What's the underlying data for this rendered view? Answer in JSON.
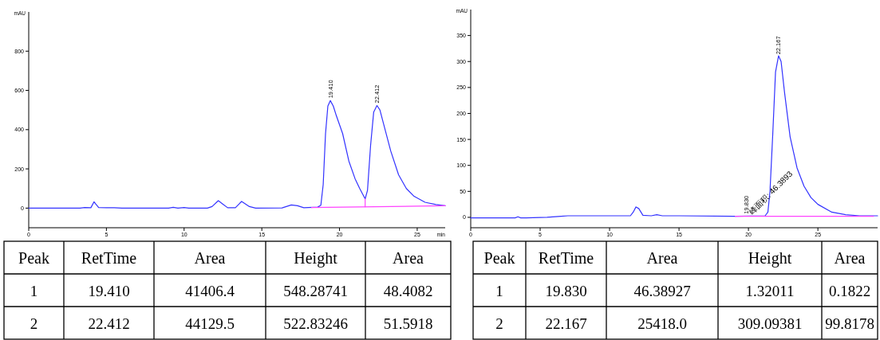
{
  "chart_data": [
    {
      "type": "line",
      "xlabel": "min",
      "ylabel": "mAU",
      "xlim": [
        0,
        26.8
      ],
      "ylim": [
        -100,
        1000
      ],
      "xticks": [
        0,
        5,
        10,
        15,
        20,
        25
      ],
      "yticks": [
        0,
        200,
        400,
        600,
        800
      ],
      "series": [
        {
          "color": "#3333ff",
          "x": [
            0,
            3.3,
            3.6,
            4.0,
            4.2,
            4.3,
            4.5,
            5.0,
            5.5,
            6.0,
            9.0,
            9.3,
            9.6,
            10.0,
            10.3,
            11.5,
            11.8,
            12.2,
            12.5,
            12.8,
            13.3,
            13.7,
            14.2,
            14.6,
            16.3,
            16.9,
            17.3,
            17.7,
            18.6,
            18.8,
            18.95,
            19.1,
            19.25,
            19.41,
            19.6,
            19.8,
            20.2,
            20.6,
            21.0,
            21.3,
            21.65,
            21.8,
            22.0,
            22.2,
            22.41,
            22.6,
            22.9,
            23.3,
            23.8,
            24.3,
            24.8,
            25.5,
            26.2,
            26.8
          ],
          "values": [
            0,
            0,
            3,
            2,
            32,
            22,
            3,
            2,
            2,
            0,
            0,
            4,
            0,
            3,
            0,
            0,
            8,
            38,
            20,
            2,
            2,
            34,
            8,
            0,
            1,
            16,
            12,
            2,
            5,
            15,
            120,
            380,
            520,
            548,
            520,
            470,
            380,
            240,
            150,
            100,
            47,
            90,
            320,
            490,
            523,
            500,
            410,
            290,
            170,
            100,
            60,
            30,
            18,
            12
          ]
        },
        {
          "color": "#ff44ff",
          "x": [
            18.2,
            26.8
          ],
          "values": [
            3,
            12
          ]
        },
        {
          "color": "#ff44ff",
          "x": [
            21.65,
            21.65
          ],
          "values": [
            7,
            47
          ]
        }
      ],
      "annotations": [
        {
          "text": "19.410",
          "x": 19.41,
          "y": 548
        },
        {
          "text": "22.412",
          "x": 22.412,
          "y": 523
        }
      ]
    },
    {
      "type": "line",
      "ylabel": "mAU",
      "xlim": [
        0,
        29.3
      ],
      "ylim": [
        -20,
        400
      ],
      "xticks": [
        0,
        5,
        10,
        15,
        20,
        25
      ],
      "yticks": [
        0,
        50,
        100,
        150,
        200,
        250,
        300,
        350
      ],
      "series": [
        {
          "color": "#3333ff",
          "x": [
            0,
            3.2,
            3.4,
            3.6,
            4.0,
            5.5,
            6.5,
            7.0,
            11.5,
            11.7,
            11.9,
            12.1,
            12.4,
            13.0,
            13.4,
            13.8,
            15.0,
            19.0,
            21.2,
            21.4,
            21.55,
            21.75,
            21.95,
            22.167,
            22.35,
            22.6,
            23.0,
            23.5,
            24.0,
            24.5,
            25.0,
            26.0,
            27.0,
            28.0,
            29.3
          ],
          "values": [
            -1,
            -1,
            1,
            -1,
            -1,
            0,
            2,
            3,
            3,
            10,
            20,
            17,
            4,
            3,
            5,
            3,
            3,
            2,
            3,
            10,
            50,
            160,
            280,
            311,
            300,
            240,
            155,
            95,
            60,
            38,
            25,
            10,
            5,
            3,
            3
          ]
        },
        {
          "color": "#ff44ff",
          "x": [
            19.05,
            29.0
          ],
          "values": [
            2,
            2
          ]
        }
      ],
      "annotations": [
        {
          "text": "22.167",
          "x": 22.167,
          "y": 309
        },
        {
          "text": "19.830",
          "x": 19.83,
          "y": 2
        },
        {
          "text": "峰面积: 46.3893",
          "x": 19.83,
          "y": 2
        }
      ]
    },
    {
      "type": "other",
      "categories": [
        "Peak",
        "RetTime",
        "Area",
        "Height",
        "Area"
      ],
      "series": [
        {
          "values": [
            1,
            19.41,
            41406.4,
            548.28741,
            48.4082
          ],
          "value_labels": [
            "1",
            "19.410",
            "41406.4",
            "548.28741",
            "48.4082"
          ]
        },
        {
          "values": [
            2,
            22.412,
            44129.5,
            522.83246,
            51.5918
          ],
          "value_labels": [
            "2",
            "22.412",
            "44129.5",
            "522.83246",
            "51.5918"
          ]
        }
      ]
    },
    {
      "type": "other",
      "categories": [
        "Peak",
        "RetTime",
        "Area",
        "Height",
        "Area"
      ],
      "series": [
        {
          "values": [
            1,
            19.83,
            46.38927,
            1.32011,
            0.1822
          ],
          "value_labels": [
            "1",
            "19.830",
            "46.38927",
            "1.32011",
            "0.1822"
          ]
        },
        {
          "values": [
            2,
            22.167,
            25418.0,
            309.09381,
            99.8178
          ],
          "value_labels": [
            "2",
            "22.167",
            "25418.0",
            "309.09381",
            "99.8178"
          ]
        }
      ]
    }
  ]
}
